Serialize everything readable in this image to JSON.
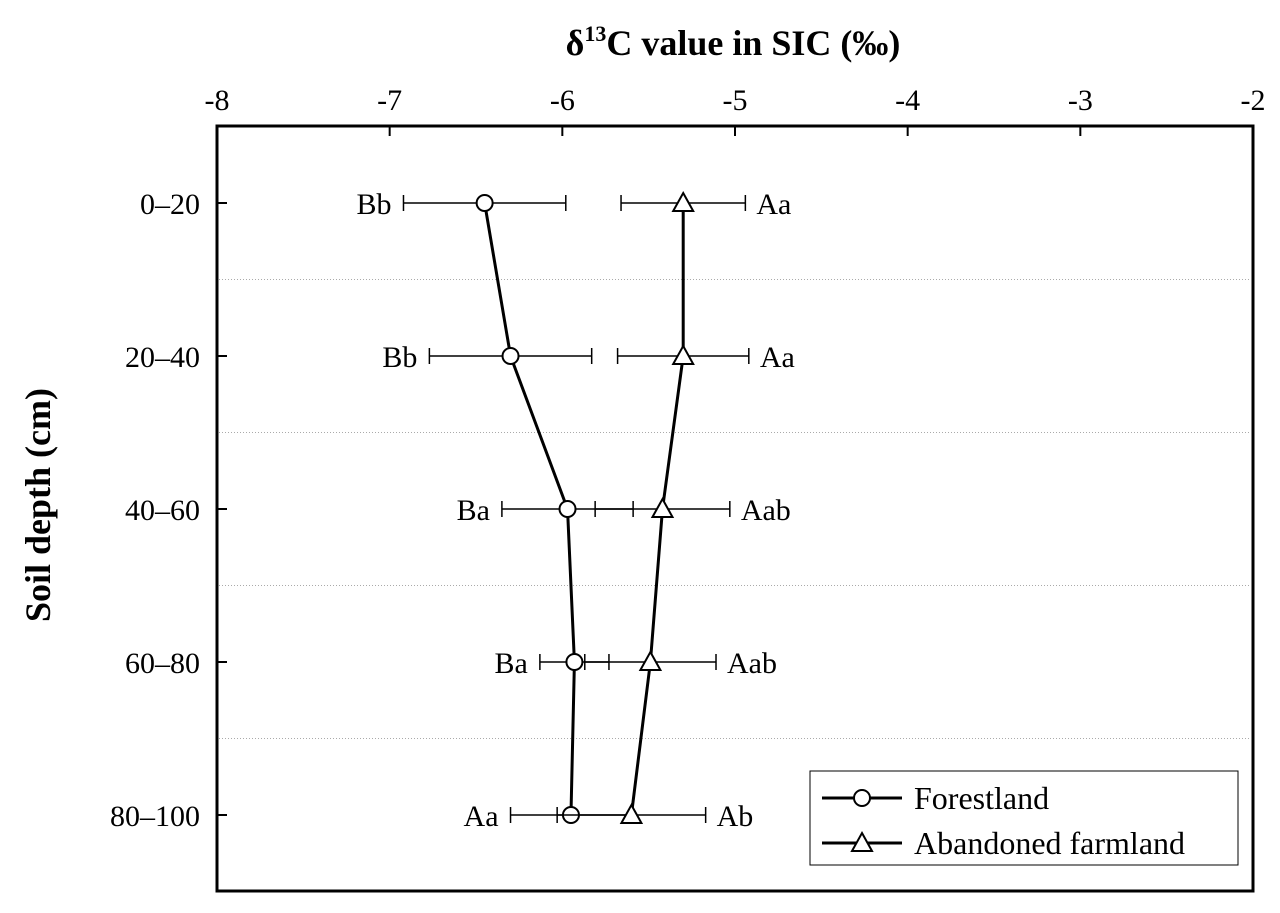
{
  "chart_data": {
    "type": "line",
    "orientation": "horizontal",
    "title": "",
    "xlabel_prefix": "δ",
    "xlabel_superscript": "13",
    "xlabel_suffix": "C value in SIC (‰)",
    "ylabel": "Soil depth (cm)",
    "xlim": [
      -8,
      -2
    ],
    "x_ticks": [
      "-8",
      "-7",
      "-6",
      "-5",
      "-4",
      "-3",
      "-2"
    ],
    "x_tick_values": [
      -8,
      -7,
      -6,
      -5,
      -4,
      -3,
      -2
    ],
    "categories": [
      "0–20",
      "20–40",
      "40–60",
      "60–80",
      "80–100"
    ],
    "y_gridlines": "dotted, between categories",
    "legend_position": "bottom-right",
    "series": [
      {
        "name": "Forestland",
        "marker": "circle",
        "values": [
          -6.45,
          -6.3,
          -5.97,
          -5.93,
          -5.95
        ],
        "errors": [
          0.47,
          0.47,
          0.38,
          0.2,
          0.35
        ],
        "labels": [
          "Bb",
          "Bb",
          "Ba",
          "Ba",
          "Aa"
        ]
      },
      {
        "name": "Abandoned farmland",
        "marker": "triangle",
        "values": [
          -5.3,
          -5.3,
          -5.42,
          -5.49,
          -5.6
        ],
        "errors": [
          0.36,
          0.38,
          0.39,
          0.38,
          0.43
        ],
        "labels": [
          "Aa",
          "Aa",
          "Aab",
          "Aab",
          "Ab"
        ]
      }
    ]
  }
}
